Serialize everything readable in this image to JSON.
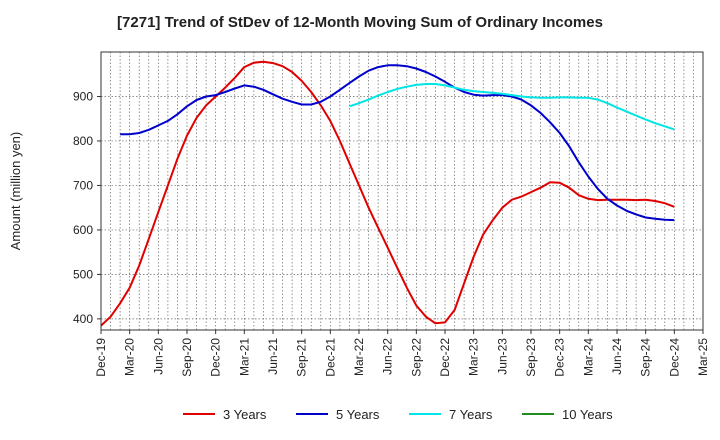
{
  "chart_data": {
    "type": "line",
    "title": "[7271]  Trend of StDev of 12-Month Moving Sum of Ordinary Incomes",
    "ylabel": "Amount (million yen)",
    "xlabel": "",
    "x_ticks": [
      "Dec-19",
      "Mar-20",
      "Jun-20",
      "Sep-20",
      "Dec-20",
      "Mar-21",
      "Jun-21",
      "Sep-21",
      "Dec-21",
      "Mar-22",
      "Jun-22",
      "Sep-22",
      "Dec-22",
      "Mar-23",
      "Jun-23",
      "Sep-23",
      "Dec-23",
      "Mar-24",
      "Jun-24",
      "Sep-24",
      "Dec-24",
      "Mar-25"
    ],
    "y_ticks": [
      400,
      500,
      600,
      700,
      800,
      900
    ],
    "ylim": [
      375,
      1000
    ],
    "grid": true,
    "legend_position": "bottom",
    "series": [
      {
        "name": "3 Years",
        "color": "#e00000",
        "points": [
          [
            "Dec-19",
            385
          ],
          [
            "Jan-20",
            405
          ],
          [
            "Feb-20",
            435
          ],
          [
            "Mar-20",
            470
          ],
          [
            "Apr-20",
            520
          ],
          [
            "May-20",
            580
          ],
          [
            "Jun-20",
            640
          ],
          [
            "Jul-20",
            700
          ],
          [
            "Aug-20",
            760
          ],
          [
            "Sep-20",
            812
          ],
          [
            "Oct-20",
            852
          ],
          [
            "Nov-20",
            880
          ],
          [
            "Dec-20",
            900
          ],
          [
            "Jan-21",
            920
          ],
          [
            "Feb-21",
            942
          ],
          [
            "Mar-21",
            966
          ],
          [
            "Apr-21",
            976
          ],
          [
            "May-21",
            978
          ],
          [
            "Jun-21",
            975
          ],
          [
            "Jul-21",
            968
          ],
          [
            "Aug-21",
            955
          ],
          [
            "Sep-21",
            935
          ],
          [
            "Oct-21",
            910
          ],
          [
            "Nov-21",
            880
          ],
          [
            "Dec-21",
            845
          ],
          [
            "Jan-22",
            800
          ],
          [
            "Feb-22",
            750
          ],
          [
            "Mar-22",
            700
          ],
          [
            "Apr-22",
            650
          ],
          [
            "May-22",
            605
          ],
          [
            "Jun-22",
            560
          ],
          [
            "Jul-22",
            515
          ],
          [
            "Aug-22",
            470
          ],
          [
            "Sep-22",
            430
          ],
          [
            "Oct-22",
            405
          ],
          [
            "Nov-22",
            390
          ],
          [
            "Dec-22",
            392
          ],
          [
            "Jan-23",
            420
          ],
          [
            "Feb-23",
            480
          ],
          [
            "Mar-23",
            540
          ],
          [
            "Apr-23",
            590
          ],
          [
            "May-23",
            622
          ],
          [
            "Jun-23",
            650
          ],
          [
            "Jul-23",
            668
          ],
          [
            "Aug-23",
            675
          ],
          [
            "Sep-23",
            685
          ],
          [
            "Oct-23",
            695
          ],
          [
            "Nov-23",
            707
          ],
          [
            "Dec-23",
            706
          ],
          [
            "Jan-24",
            695
          ],
          [
            "Feb-24",
            678
          ],
          [
            "Mar-24",
            670
          ],
          [
            "Apr-24",
            667
          ],
          [
            "May-24",
            668
          ],
          [
            "Jun-24",
            668
          ],
          [
            "Jul-24",
            668
          ],
          [
            "Aug-24",
            667
          ],
          [
            "Sep-24",
            668
          ],
          [
            "Oct-24",
            665
          ],
          [
            "Nov-24",
            660
          ],
          [
            "Dec-24",
            652
          ]
        ]
      },
      {
        "name": "5 Years",
        "color": "#0000cc",
        "points": [
          [
            "Feb-20",
            815
          ],
          [
            "Mar-20",
            815
          ],
          [
            "Apr-20",
            818
          ],
          [
            "May-20",
            825
          ],
          [
            "Jun-20",
            835
          ],
          [
            "Jul-20",
            845
          ],
          [
            "Aug-20",
            860
          ],
          [
            "Sep-20",
            878
          ],
          [
            "Oct-20",
            892
          ],
          [
            "Nov-20",
            900
          ],
          [
            "Dec-20",
            903
          ],
          [
            "Jan-21",
            910
          ],
          [
            "Feb-21",
            918
          ],
          [
            "Mar-21",
            925
          ],
          [
            "Apr-21",
            922
          ],
          [
            "May-21",
            915
          ],
          [
            "Jun-21",
            905
          ],
          [
            "Jul-21",
            895
          ],
          [
            "Aug-21",
            888
          ],
          [
            "Sep-21",
            882
          ],
          [
            "Oct-21",
            882
          ],
          [
            "Nov-21",
            888
          ],
          [
            "Dec-21",
            900
          ],
          [
            "Jan-22",
            915
          ],
          [
            "Feb-22",
            930
          ],
          [
            "Mar-22",
            945
          ],
          [
            "Apr-22",
            958
          ],
          [
            "May-22",
            966
          ],
          [
            "Jun-22",
            970
          ],
          [
            "Jul-22",
            970
          ],
          [
            "Aug-22",
            968
          ],
          [
            "Sep-22",
            963
          ],
          [
            "Oct-22",
            955
          ],
          [
            "Nov-22",
            945
          ],
          [
            "Dec-22",
            933
          ],
          [
            "Jan-23",
            920
          ],
          [
            "Feb-23",
            910
          ],
          [
            "Mar-23",
            904
          ],
          [
            "Apr-23",
            902
          ],
          [
            "May-23",
            903
          ],
          [
            "Jun-23",
            903
          ],
          [
            "Jul-23",
            900
          ],
          [
            "Aug-23",
            893
          ],
          [
            "Sep-23",
            880
          ],
          [
            "Oct-23",
            863
          ],
          [
            "Nov-23",
            842
          ],
          [
            "Dec-23",
            818
          ],
          [
            "Jan-24",
            788
          ],
          [
            "Feb-24",
            752
          ],
          [
            "Mar-24",
            720
          ],
          [
            "Apr-24",
            692
          ],
          [
            "May-24",
            670
          ],
          [
            "Jun-24",
            655
          ],
          [
            "Jul-24",
            643
          ],
          [
            "Aug-24",
            635
          ],
          [
            "Sep-24",
            628
          ],
          [
            "Oct-24",
            625
          ],
          [
            "Nov-24",
            623
          ],
          [
            "Dec-24",
            622
          ]
        ]
      },
      {
        "name": "7 Years",
        "color": "#00e5e5",
        "points": [
          [
            "Feb-22",
            878
          ],
          [
            "Mar-22",
            885
          ],
          [
            "Apr-22",
            893
          ],
          [
            "May-22",
            902
          ],
          [
            "Jun-22",
            910
          ],
          [
            "Jul-22",
            917
          ],
          [
            "Aug-22",
            922
          ],
          [
            "Sep-22",
            926
          ],
          [
            "Oct-22",
            928
          ],
          [
            "Nov-22",
            928
          ],
          [
            "Dec-22",
            925
          ],
          [
            "Jan-23",
            920
          ],
          [
            "Feb-23",
            915
          ],
          [
            "Mar-23",
            912
          ],
          [
            "Apr-23",
            910
          ],
          [
            "May-23",
            908
          ],
          [
            "Jun-23",
            906
          ],
          [
            "Jul-23",
            903
          ],
          [
            "Aug-23",
            900
          ],
          [
            "Sep-23",
            898
          ],
          [
            "Oct-23",
            897
          ],
          [
            "Nov-23",
            897
          ],
          [
            "Dec-23",
            898
          ],
          [
            "Jan-24",
            898
          ],
          [
            "Feb-24",
            897
          ],
          [
            "Mar-24",
            897
          ],
          [
            "Apr-24",
            893
          ],
          [
            "May-24",
            885
          ],
          [
            "Jun-24",
            875
          ],
          [
            "Jul-24",
            866
          ],
          [
            "Aug-24",
            857
          ],
          [
            "Sep-24",
            848
          ],
          [
            "Oct-24",
            840
          ],
          [
            "Nov-24",
            833
          ],
          [
            "Dec-24",
            826
          ]
        ]
      },
      {
        "name": "10 Years",
        "color": "#228b22",
        "points": []
      }
    ]
  }
}
